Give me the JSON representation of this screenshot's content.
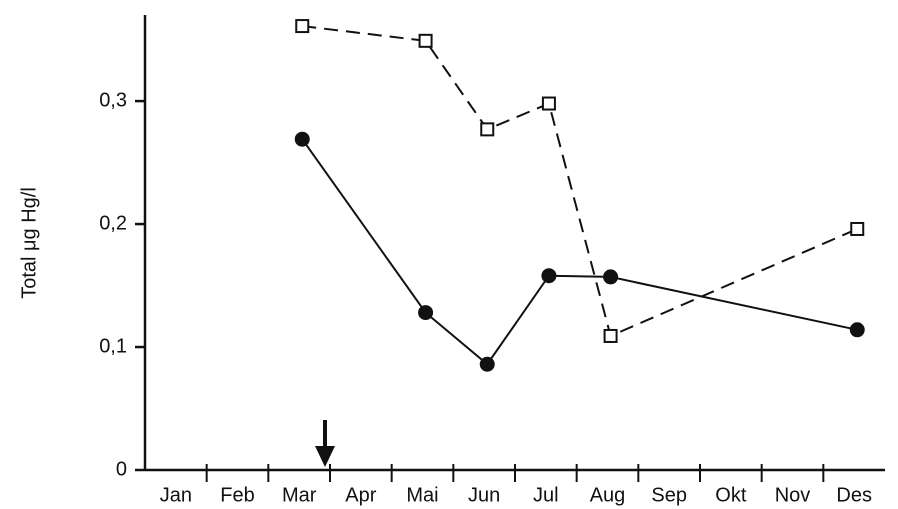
{
  "chart_data": {
    "type": "line",
    "y_label": "Total μg Hg/l",
    "categories": [
      "Jan",
      "Feb",
      "Mar",
      "Apr",
      "Mai",
      "Jun",
      "Jul",
      "Aug",
      "Sep",
      "Okt",
      "Nov",
      "Des"
    ],
    "ylim": [
      0,
      0.37
    ],
    "yticks": [
      0,
      {
        "value": 0.1,
        "label": "0,1"
      },
      {
        "value": 0.2,
        "label": "0,2"
      },
      {
        "value": 0.3,
        "label": "0,3"
      }
    ],
    "series": [
      {
        "color": "#111111",
        "marker": "square",
        "dashed": true,
        "x": [
          "Mar",
          "Mai",
          "Jun",
          "Jul",
          "Aug",
          "Des"
        ],
        "values": [
          0.361,
          0.349,
          0.277,
          0.298,
          0.109,
          0.196
        ]
      },
      {
        "color": "#111111",
        "marker": "circle",
        "dashed": false,
        "x": [
          "Mar",
          "Mai",
          "Jun",
          "Jul",
          "Aug",
          "Des"
        ],
        "values": [
          0.269,
          0.128,
          0.086,
          0.158,
          0.157,
          0.114
        ]
      }
    ]
  }
}
